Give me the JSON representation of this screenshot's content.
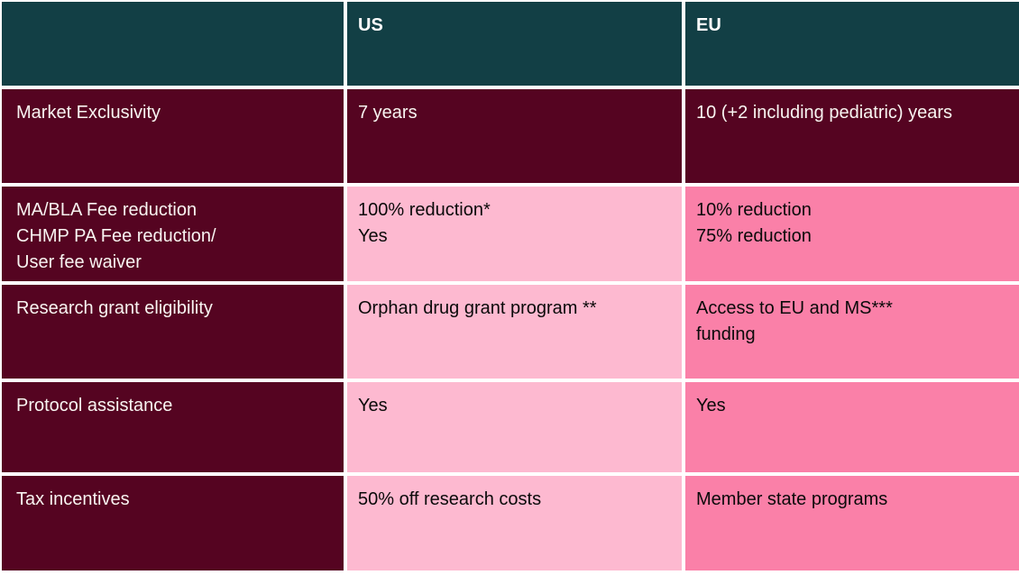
{
  "colors": {
    "header_teal": "#123f45",
    "row_maroon": "#550421",
    "us_pink_light": "#fdb9d0",
    "eu_pink_mid": "#fa80a8",
    "gap_white": "#ffffff",
    "light_text": "#ffffff",
    "dark_text": "#0a0a0a"
  },
  "table": {
    "header": {
      "empty": "",
      "us": "US",
      "eu": "EU"
    },
    "rows": [
      {
        "label": [
          "Market Exclusivity"
        ],
        "us": [
          "7 years"
        ],
        "eu": [
          "10 (+2 including pediatric) years"
        ]
      },
      {
        "label": [
          "MA/BLA Fee reduction",
          "CHMP PA Fee reduction/",
          "User fee waiver"
        ],
        "us": [
          "100% reduction*",
          "Yes"
        ],
        "eu": [
          "10% reduction",
          "75% reduction"
        ]
      },
      {
        "label": [
          "Research grant eligibility"
        ],
        "us": [
          "Orphan drug grant program **"
        ],
        "eu": [
          "Access to EU and MS***",
          "funding"
        ]
      },
      {
        "label": [
          "Protocol assistance"
        ],
        "us": [
          "Yes"
        ],
        "eu": [
          "Yes"
        ]
      },
      {
        "label": [
          "Tax incentives"
        ],
        "us": [
          "50% off research costs"
        ],
        "eu": [
          "Member state programs"
        ]
      }
    ]
  }
}
